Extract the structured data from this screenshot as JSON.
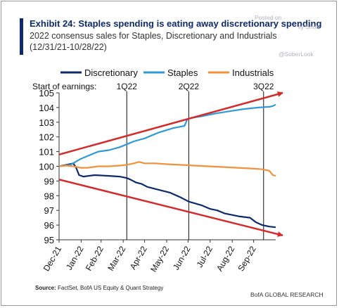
{
  "title": "Exhibit 24: Staples spending is eating away discretionary spending",
  "subtitle": "2022 consensus sales for Staples, Discretionary and Industrials (12/31/21-10/28/22)",
  "watermark": {
    "posted_on": "Posted on",
    "shot": "lly Shot",
    "handle": "@SoberLook"
  },
  "footer": {
    "source_label": "Source:",
    "source_text": " FactSet, BofA US Equity & Quant Strategy",
    "brand": "BofA GLOBAL RESEARCH"
  },
  "chart_data": {
    "type": "line",
    "ylim": [
      95,
      105
    ],
    "yticks": [
      95,
      96,
      97,
      98,
      99,
      100,
      101,
      102,
      103,
      104,
      105
    ],
    "x_range": [
      0,
      304
    ],
    "xticks": [
      {
        "label": "Dec-21",
        "x": 0
      },
      {
        "label": "Jan-22",
        "x": 31
      },
      {
        "label": "Feb-22",
        "x": 59
      },
      {
        "label": "Mar-22",
        "x": 90
      },
      {
        "label": "Apr-22",
        "x": 120
      },
      {
        "label": "May-22",
        "x": 151
      },
      {
        "label": "Jun-22",
        "x": 181
      },
      {
        "label": "Jul-22",
        "x": 212
      },
      {
        "label": "Aug-22",
        "x": 243
      },
      {
        "label": "Sep-22",
        "x": 273
      }
    ],
    "earnings_label": "Start of earnings:",
    "earnings_markers": [
      {
        "label": "1Q22",
        "x": 95
      },
      {
        "label": "2Q22",
        "x": 182
      },
      {
        "label": "3Q22",
        "x": 287
      }
    ],
    "series": [
      {
        "name": "Discretionary",
        "color": "#0d2b6b",
        "points": [
          [
            0,
            100.0
          ],
          [
            10,
            100.1
          ],
          [
            20,
            100.2
          ],
          [
            24,
            99.9
          ],
          [
            28,
            99.4
          ],
          [
            34,
            99.3
          ],
          [
            50,
            99.4
          ],
          [
            70,
            99.35
          ],
          [
            85,
            99.3
          ],
          [
            95,
            99.2
          ],
          [
            100,
            99.1
          ],
          [
            108,
            98.9
          ],
          [
            116,
            98.8
          ],
          [
            124,
            98.6
          ],
          [
            140,
            98.4
          ],
          [
            156,
            98.2
          ],
          [
            170,
            97.9
          ],
          [
            182,
            97.6
          ],
          [
            200,
            97.35
          ],
          [
            212,
            97.1
          ],
          [
            222,
            97.0
          ],
          [
            232,
            96.8
          ],
          [
            252,
            96.6
          ],
          [
            268,
            96.5
          ],
          [
            276,
            96.2
          ],
          [
            285,
            96.0
          ],
          [
            295,
            95.9
          ],
          [
            304,
            95.85
          ]
        ]
      },
      {
        "name": "Staples",
        "color": "#2f9ad6",
        "points": [
          [
            0,
            100.0
          ],
          [
            16,
            100.1
          ],
          [
            30,
            100.5
          ],
          [
            40,
            100.7
          ],
          [
            55,
            101.0
          ],
          [
            70,
            101.1
          ],
          [
            85,
            101.3
          ],
          [
            95,
            101.5
          ],
          [
            105,
            101.7
          ],
          [
            120,
            101.9
          ],
          [
            140,
            102.3
          ],
          [
            160,
            102.6
          ],
          [
            176,
            102.75
          ],
          [
            180,
            103.2
          ],
          [
            186,
            103.3
          ],
          [
            200,
            103.4
          ],
          [
            220,
            103.6
          ],
          [
            240,
            103.75
          ],
          [
            260,
            103.9
          ],
          [
            280,
            104.0
          ],
          [
            295,
            104.05
          ],
          [
            300,
            104.1
          ],
          [
            304,
            104.2
          ]
        ]
      },
      {
        "name": "Industrials",
        "color": "#f0923b",
        "points": [
          [
            0,
            100.0
          ],
          [
            10,
            100.05
          ],
          [
            20,
            100.0
          ],
          [
            30,
            99.9
          ],
          [
            40,
            99.9
          ],
          [
            55,
            100.0
          ],
          [
            70,
            100.0
          ],
          [
            85,
            100.05
          ],
          [
            95,
            100.1
          ],
          [
            105,
            100.2
          ],
          [
            112,
            100.3
          ],
          [
            120,
            100.2
          ],
          [
            135,
            100.2
          ],
          [
            150,
            100.15
          ],
          [
            170,
            100.1
          ],
          [
            190,
            100.05
          ],
          [
            210,
            100.0
          ],
          [
            230,
            99.95
          ],
          [
            250,
            99.9
          ],
          [
            270,
            99.85
          ],
          [
            285,
            99.8
          ],
          [
            295,
            99.7
          ],
          [
            300,
            99.4
          ],
          [
            304,
            99.35
          ]
        ]
      }
    ],
    "trend_arrows": [
      {
        "color": "#d42a2a",
        "from": [
          0,
          100.8
        ],
        "to": [
          304,
          105.0
        ]
      },
      {
        "color": "#d42a2a",
        "from": [
          0,
          99.1
        ],
        "to": [
          304,
          95.3
        ]
      }
    ]
  }
}
